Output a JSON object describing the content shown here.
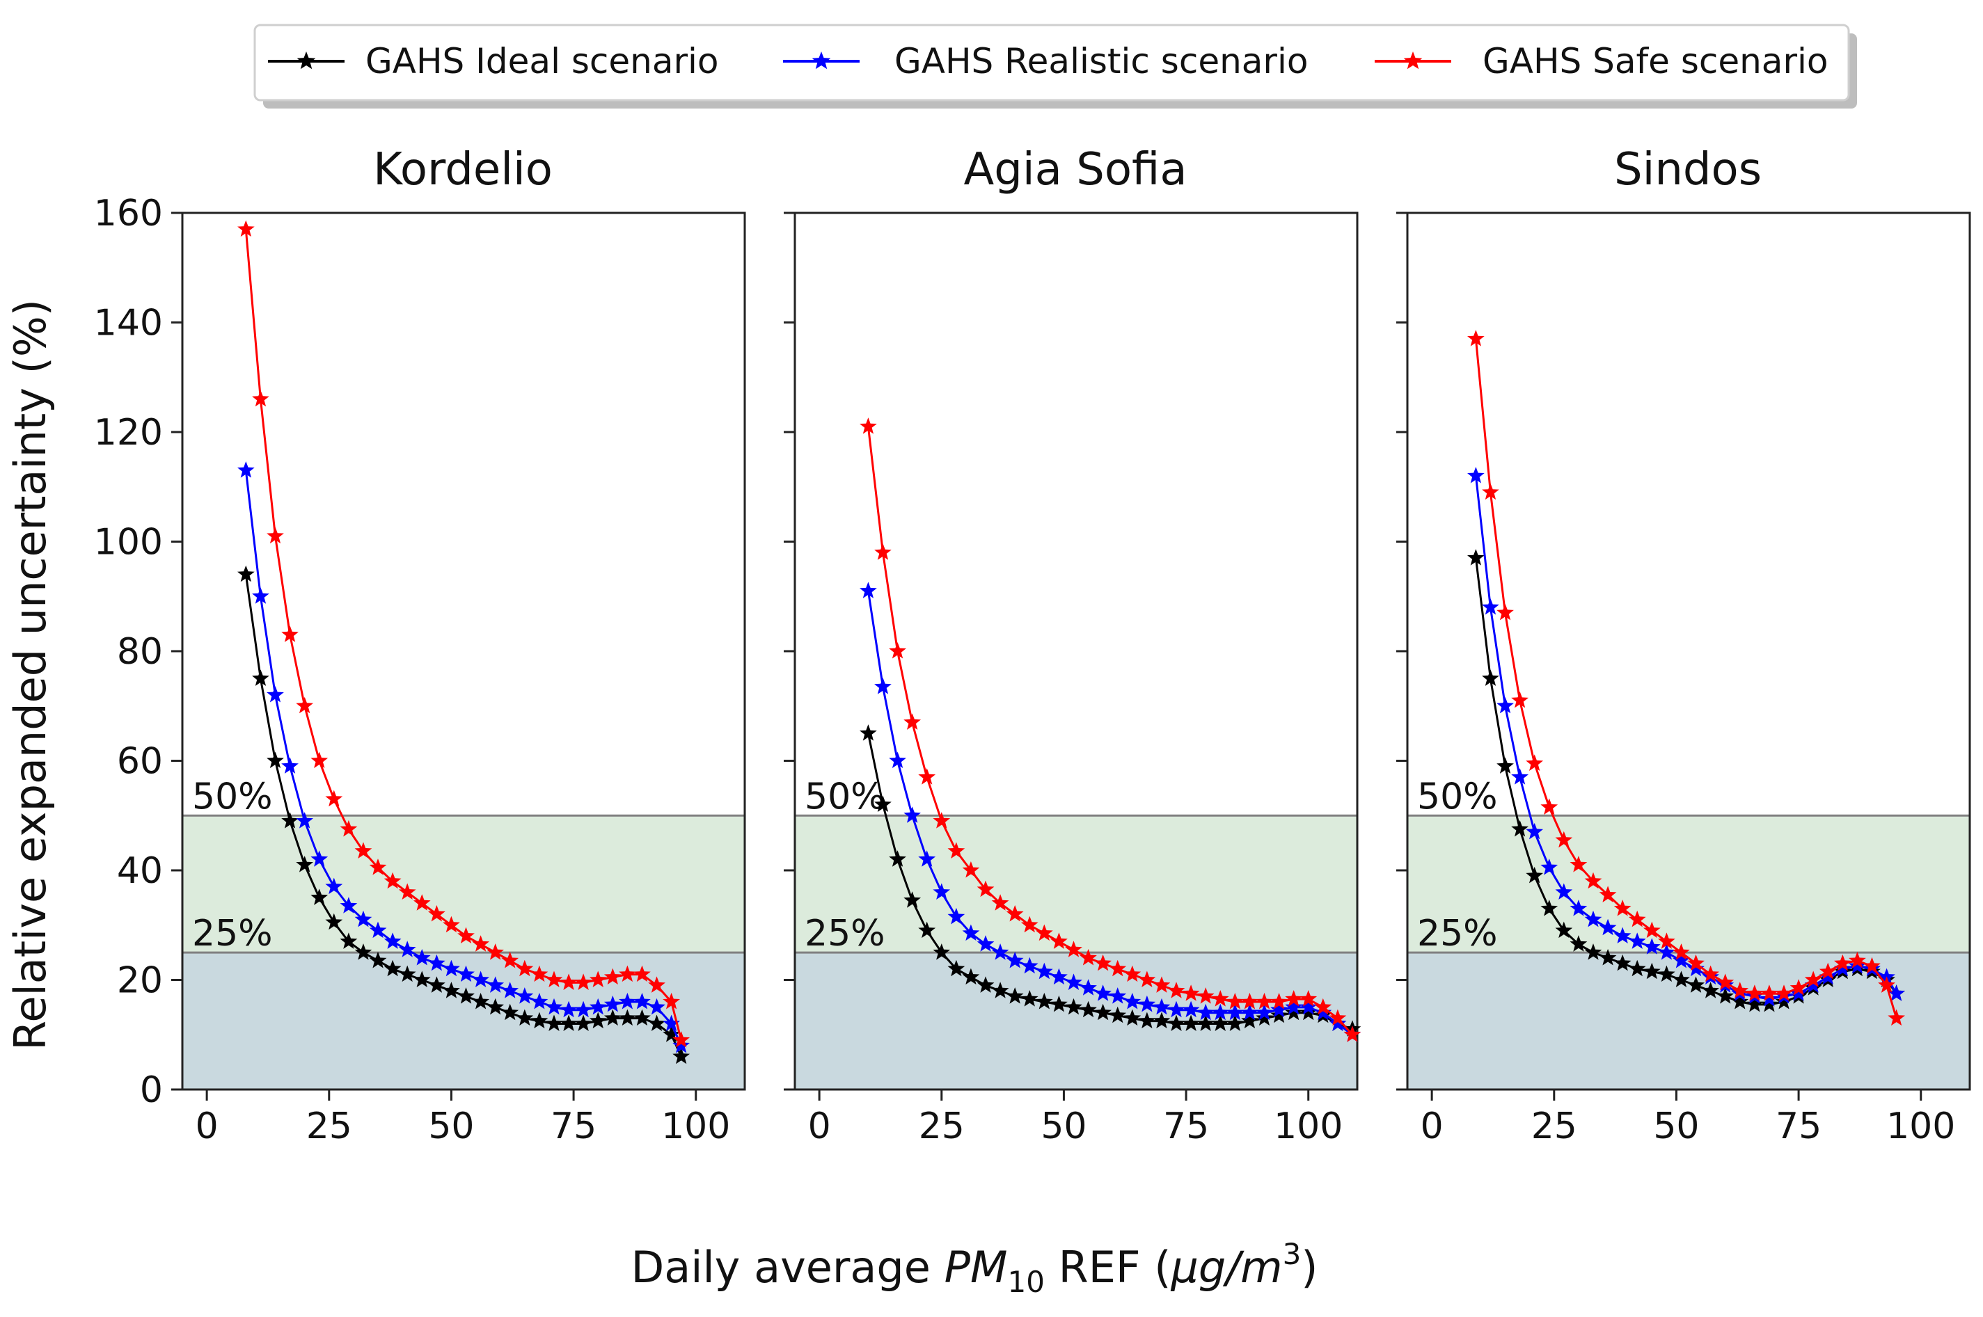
{
  "legend": {
    "entries": [
      {
        "label": "GAHS Ideal scenario",
        "color": "#000000"
      },
      {
        "label": "GAHS Realistic scenario",
        "color": "#0000ff"
      },
      {
        "label": "GAHS Safe scenario",
        "color": "#ff0000"
      }
    ]
  },
  "axes": {
    "ylabel": "Relative expanded uncertainty (%)",
    "xlabel_prefix": "Daily average ",
    "xlabel_pm": "PM",
    "xlabel_sub": "10",
    "xlabel_mid": " REF (",
    "xlabel_unit": "μg/m",
    "xlabel_sup": "3",
    "xlabel_close": ")"
  },
  "bands": {
    "upper_label": "50%",
    "lower_label": "25%",
    "upper_value": 50,
    "lower_value": 25,
    "green_color": "#dcebdc",
    "blue_color": "#c9d9df",
    "line_color": "#808080"
  },
  "chart_data": [
    {
      "type": "line",
      "title": "Kordelio",
      "xlim": [
        -5,
        110
      ],
      "ylim": [
        0,
        160
      ],
      "xticks": [
        0,
        25,
        50,
        75,
        100
      ],
      "yticks": [
        0,
        20,
        40,
        60,
        80,
        100,
        120,
        140,
        160
      ],
      "series": [
        {
          "name": "GAHS Ideal scenario",
          "x": [
            8,
            11,
            14,
            17,
            20,
            23,
            26,
            29,
            32,
            35,
            38,
            41,
            44,
            47,
            50,
            53,
            56,
            59,
            62,
            65,
            68,
            71,
            74,
            77,
            80,
            83,
            86,
            89,
            92,
            95,
            97
          ],
          "y": [
            94,
            75,
            60,
            49,
            41,
            35,
            30.5,
            27,
            25,
            23.5,
            22,
            21,
            20,
            19,
            18,
            17,
            16,
            15,
            14,
            13,
            12.5,
            12,
            12,
            12,
            12.5,
            13,
            13,
            13,
            12,
            10,
            6
          ]
        },
        {
          "name": "GAHS Realistic scenario",
          "x": [
            8,
            11,
            14,
            17,
            20,
            23,
            26,
            29,
            32,
            35,
            38,
            41,
            44,
            47,
            50,
            53,
            56,
            59,
            62,
            65,
            68,
            71,
            74,
            77,
            80,
            83,
            86,
            89,
            92,
            95,
            97
          ],
          "y": [
            113,
            90,
            72,
            59,
            49,
            42,
            37,
            33.5,
            31,
            29,
            27,
            25.5,
            24,
            23,
            22,
            21,
            20,
            19,
            18,
            17,
            16,
            15,
            14.5,
            14.5,
            15,
            15.5,
            16,
            16,
            15,
            12,
            8
          ]
        },
        {
          "name": "GAHS Safe scenario",
          "x": [
            8,
            11,
            14,
            17,
            20,
            23,
            26,
            29,
            32,
            35,
            38,
            41,
            44,
            47,
            50,
            53,
            56,
            59,
            62,
            65,
            68,
            71,
            74,
            77,
            80,
            83,
            86,
            89,
            92,
            95,
            97
          ],
          "y": [
            157,
            126,
            101,
            83,
            70,
            60,
            53,
            47.5,
            43.5,
            40.5,
            38,
            36,
            34,
            32,
            30,
            28,
            26.5,
            25,
            23.5,
            22,
            21,
            20,
            19.5,
            19.5,
            20,
            20.5,
            21,
            21,
            19,
            16,
            9
          ]
        }
      ]
    },
    {
      "type": "line",
      "title": "Agia Sofia",
      "xlim": [
        -5,
        110
      ],
      "ylim": [
        0,
        160
      ],
      "xticks": [
        0,
        25,
        50,
        75,
        100
      ],
      "yticks": [
        0,
        20,
        40,
        60,
        80,
        100,
        120,
        140,
        160
      ],
      "series": [
        {
          "name": "GAHS Ideal scenario",
          "x": [
            10,
            13,
            16,
            19,
            22,
            25,
            28,
            31,
            34,
            37,
            40,
            43,
            46,
            49,
            52,
            55,
            58,
            61,
            64,
            67,
            70,
            73,
            76,
            79,
            82,
            85,
            88,
            91,
            94,
            97,
            100,
            103,
            106,
            109
          ],
          "y": [
            65,
            52,
            42,
            34.5,
            29,
            25,
            22,
            20.5,
            19,
            18,
            17,
            16.5,
            16,
            15.5,
            15,
            14.5,
            14,
            13.5,
            13,
            12.5,
            12.5,
            12,
            12,
            12,
            12,
            12,
            12.5,
            13,
            13.5,
            14,
            14,
            13.5,
            12,
            11
          ]
        },
        {
          "name": "GAHS Realistic scenario",
          "x": [
            10,
            13,
            16,
            19,
            22,
            25,
            28,
            31,
            34,
            37,
            40,
            43,
            46,
            49,
            52,
            55,
            58,
            61,
            64,
            67,
            70,
            73,
            76,
            79,
            82,
            85,
            88,
            91,
            94,
            97,
            100,
            103,
            106,
            109
          ],
          "y": [
            91,
            73.5,
            60,
            50,
            42,
            36,
            31.5,
            28.5,
            26.5,
            25,
            23.5,
            22.5,
            21.5,
            20.5,
            19.5,
            18.5,
            17.5,
            17,
            16,
            15.5,
            15,
            14.5,
            14.5,
            14,
            14,
            14,
            14,
            14,
            14.5,
            15,
            15,
            14,
            12,
            10
          ]
        },
        {
          "name": "GAHS Safe scenario",
          "x": [
            10,
            13,
            16,
            19,
            22,
            25,
            28,
            31,
            34,
            37,
            40,
            43,
            46,
            49,
            52,
            55,
            58,
            61,
            64,
            67,
            70,
            73,
            76,
            79,
            82,
            85,
            88,
            91,
            94,
            97,
            100,
            103,
            106,
            109
          ],
          "y": [
            121,
            98,
            80,
            67,
            57,
            49,
            43.5,
            40,
            36.5,
            34,
            32,
            30,
            28.5,
            27,
            25.5,
            24,
            23,
            22,
            21,
            20,
            19,
            18,
            17.5,
            17,
            16.5,
            16,
            16,
            16,
            16,
            16.5,
            16.5,
            15,
            13,
            10
          ]
        }
      ]
    },
    {
      "type": "line",
      "title": "Sindos",
      "xlim": [
        -5,
        110
      ],
      "ylim": [
        0,
        160
      ],
      "xticks": [
        0,
        25,
        50,
        75,
        100
      ],
      "yticks": [
        0,
        20,
        40,
        60,
        80,
        100,
        120,
        140,
        160
      ],
      "series": [
        {
          "name": "GAHS Ideal scenario",
          "x": [
            9,
            12,
            15,
            18,
            21,
            24,
            27,
            30,
            33,
            36,
            39,
            42,
            45,
            48,
            51,
            54,
            57,
            60,
            63,
            66,
            69,
            72,
            75,
            78,
            81,
            84,
            87,
            90,
            93,
            95
          ],
          "y": [
            97,
            75,
            59,
            47.5,
            39,
            33,
            29,
            26.5,
            25,
            24,
            23,
            22,
            21.5,
            21,
            20,
            19,
            18,
            17,
            16,
            15.5,
            15.5,
            16,
            17,
            18.5,
            20,
            21.5,
            22,
            21.5,
            20,
            17.5
          ]
        },
        {
          "name": "GAHS Realistic scenario",
          "x": [
            9,
            12,
            15,
            18,
            21,
            24,
            27,
            30,
            33,
            36,
            39,
            42,
            45,
            48,
            51,
            54,
            57,
            60,
            63,
            66,
            69,
            72,
            75,
            78,
            81,
            84,
            87,
            90,
            93,
            95
          ],
          "y": [
            112,
            88,
            70,
            57,
            47,
            40.5,
            36,
            33,
            31,
            29.5,
            28,
            27,
            26,
            25,
            23.5,
            22,
            20.5,
            19,
            17.5,
            17,
            16.5,
            17,
            17.5,
            19,
            20.5,
            22,
            22.5,
            22,
            20.5,
            17.5
          ]
        },
        {
          "name": "GAHS Safe scenario",
          "x": [
            9,
            12,
            15,
            18,
            21,
            24,
            27,
            30,
            33,
            36,
            39,
            42,
            45,
            48,
            51,
            54,
            57,
            60,
            63,
            66,
            69,
            72,
            75,
            78,
            81,
            84,
            87,
            90,
            93,
            95
          ],
          "y": [
            137,
            109,
            87,
            71,
            59.5,
            51.5,
            45.5,
            41,
            38,
            35.5,
            33,
            31,
            29,
            27,
            25,
            23,
            21,
            19.5,
            18,
            17.5,
            17.5,
            17.5,
            18.5,
            20,
            21.5,
            23,
            23.5,
            22.5,
            19,
            13
          ]
        }
      ]
    }
  ]
}
